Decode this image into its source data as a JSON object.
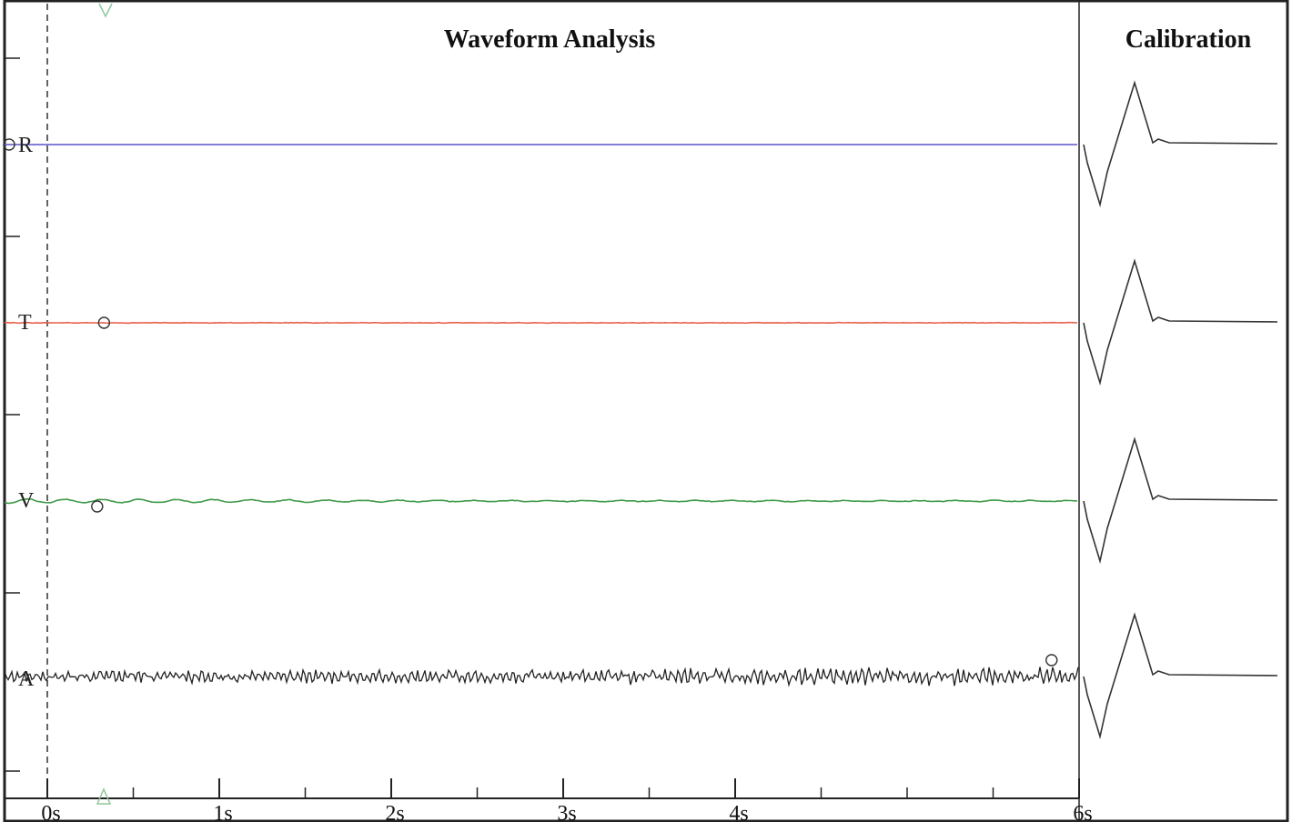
{
  "chart_data": {
    "type": "line",
    "title": "Waveform Analysis",
    "calibration_title": "Calibration",
    "x_unit": "s",
    "xlim": [
      0,
      6
    ],
    "x_ticks": [
      {
        "value": 0,
        "label": "0s"
      },
      {
        "value": 1,
        "label": "1s"
      },
      {
        "value": 2,
        "label": "2s"
      },
      {
        "value": 3,
        "label": "3s"
      },
      {
        "value": 4,
        "label": "4s"
      },
      {
        "value": 6,
        "label": "6s"
      }
    ],
    "x_minor_ticks": [
      0.5,
      1.5,
      2.5,
      3.5,
      4.5,
      5,
      5.5
    ],
    "trigger_time": 0,
    "channels": [
      {
        "label": "R",
        "color": "#5a55c8",
        "style": "flat",
        "noise": 0.0,
        "marker_time": -0.24
      },
      {
        "label": "T",
        "color": "#e8604a",
        "style": "flat",
        "noise": 0.6,
        "marker_time": 0.33
      },
      {
        "label": "V",
        "color": "#3f9a4a",
        "style": "decaying",
        "noise": 2.2,
        "marker_time": 0.29
      },
      {
        "label": "A",
        "color": "#222222",
        "style": "noisy",
        "noise": 8.5,
        "marker_time": 5.84
      }
    ]
  }
}
